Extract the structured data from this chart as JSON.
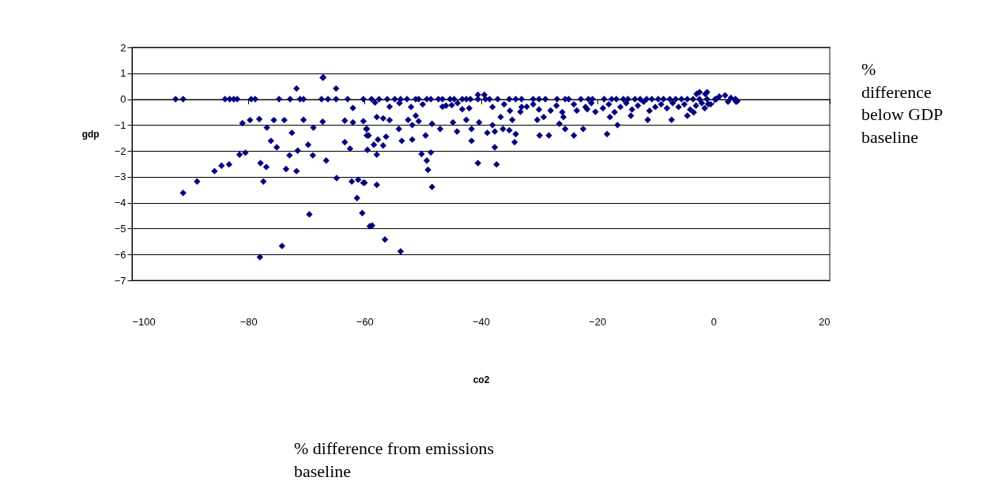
{
  "chart_data": {
    "type": "scatter",
    "xlabel": "co2",
    "ylabel": "gdp",
    "annotations": [
      "% difference below GDP baseline",
      "% difference from emissions baseline"
    ],
    "xlim": [
      -100,
      20
    ],
    "xticks": [
      -100,
      -80,
      -60,
      -40,
      -20,
      0,
      20
    ],
    "ylim": [
      -7,
      2
    ],
    "yticks": [
      -7,
      -6,
      -5,
      -4,
      -3,
      -2,
      -1,
      0,
      1,
      2
    ],
    "grid": "y",
    "marker": "diamond",
    "series": [
      {
        "color": "#000080",
        "x": [
          -92.5,
          -91.2,
          -84,
          -83.2,
          -82.5,
          -81.9,
          -79.5,
          -78.8,
          -74.7,
          -72.8,
          -71.1,
          -70.5,
          -67.4,
          -66.3,
          -64.9,
          -62.9,
          -60.2,
          -58.8,
          -57.5,
          -56.1,
          -54.8,
          -53.8,
          -52.7,
          -51.2,
          -50.7,
          -49.3,
          -48.6,
          -47.3,
          -46.6,
          -45.3,
          -44.6,
          -43.2,
          -42.5,
          -41.8,
          -40.5,
          -39.2,
          -38.5,
          -37.1,
          -35.1,
          -34.0,
          -33.0,
          -31.0,
          -30.0,
          -28.9,
          -26.9,
          -25.5,
          -24.9,
          -22.8,
          -21.5,
          -20.8,
          -18.8,
          -17.5,
          -16.7,
          -15.5,
          -14.7,
          -13.5,
          -12.6,
          -11.5,
          -10.6,
          -9.5,
          -8.6,
          -7.5,
          -6.5,
          -5.5,
          -4.5,
          -3.5,
          -2.4,
          -1.1,
          0.3,
          0.5,
          -38,
          -36,
          -35,
          -33,
          -31,
          -30,
          -27,
          -26,
          -24,
          -22,
          -21,
          -19,
          -18,
          -17,
          -16,
          -15,
          -14,
          -13,
          -12,
          -11,
          -10,
          -9,
          -8,
          -7,
          -6,
          -5,
          -4,
          -3,
          -2,
          -1.5,
          -0.5,
          1,
          2,
          2.5,
          3,
          -54,
          -52,
          -50,
          -46,
          -44,
          -42,
          -67.1,
          -71.7,
          -64.9,
          -2.9,
          -1.4,
          3.8,
          3.9,
          -91.2,
          -88.8,
          -85.8,
          -84.6,
          -83.3,
          -81.5,
          -80.5,
          -81.0,
          -79.7,
          -78.1,
          -76.8,
          -75.6,
          -73.8,
          -77.9,
          -76.9,
          -77.4,
          -76.1,
          -75.1,
          -72.5,
          -72.9,
          -73.5,
          -71.7,
          -71.5,
          -70.5,
          -69.7,
          -68.9,
          -68.8,
          -69.5,
          -67.2,
          -67.2,
          -66.6,
          -64.8,
          -63.4,
          -63.4,
          -62.5,
          -62.2,
          -62.0,
          -62.0,
          -61.1,
          -60.2,
          -61.3,
          -60.4,
          -59.1,
          -59.5,
          -59.6,
          -59.6,
          -60.2,
          -74.2,
          -78.0,
          -58.2,
          -55.7,
          -57.9,
          -56.8,
          -55.7,
          -59.7,
          -59.3,
          -57.7,
          -56.3,
          -58.4,
          -56.8,
          -57.9,
          -60.0,
          -57.9,
          -58.7,
          -56.5,
          -53.8,
          -54.1,
          -53.6,
          -51.8,
          -52.5,
          -51.2,
          -51.8,
          -50.7,
          -49.5,
          -50.2,
          -48.6,
          -49.3,
          -49.1,
          -48.4,
          -48.4,
          -47.0,
          -46.6,
          -45.0,
          -44.8,
          -44.1,
          -43.2,
          -42.5,
          -41.6,
          -41.6,
          -40.5,
          -40.5,
          -39.4,
          -40.3,
          -38.9,
          -38.0,
          -37.6,
          -37.3,
          -37.6,
          -36.6,
          -36.2,
          -35.1,
          -34.2,
          -34.0,
          -34.6,
          -33.2,
          -32.1,
          -30.3,
          -29.9,
          -28.3,
          -29.2,
          -28.0,
          -26.5,
          -25.5,
          -25.8,
          -24.0,
          -22.4,
          -23.5,
          -21.7,
          -20.3,
          -18.3,
          -16.5,
          -17.8,
          -14.2,
          -11.3,
          -7.2,
          -4.5,
          -3.4,
          -2.4,
          -1.1,
          -0.9,
          3.7,
          4.1
        ],
        "values": [
          0,
          0,
          0,
          0,
          0,
          0,
          0,
          0,
          0,
          0,
          0,
          0,
          0,
          0,
          0,
          0,
          0,
          0,
          0,
          0,
          0,
          0,
          0,
          0,
          0,
          0,
          0,
          0,
          0,
          0,
          0,
          0,
          0,
          0,
          0,
          0,
          0,
          0,
          0,
          0,
          0,
          0,
          0,
          0,
          0,
          0,
          0,
          0,
          0,
          0,
          0,
          0,
          0,
          0,
          0,
          0,
          0,
          0,
          0,
          0,
          0,
          0,
          0,
          0,
          0,
          0,
          0,
          0,
          0,
          0,
          -0.3,
          -0.2,
          -0.45,
          -0.3,
          -0.2,
          -0.4,
          -0.25,
          -0.5,
          -0.2,
          -0.3,
          -0.15,
          -0.35,
          -0.2,
          -0.5,
          -0.3,
          -0.15,
          -0.4,
          -0.25,
          -0.1,
          -0.45,
          -0.3,
          -0.2,
          -0.35,
          -0.15,
          -0.3,
          -0.2,
          -0.4,
          -0.25,
          -0.15,
          -0.35,
          -0.2,
          0.1,
          0.15,
          -0.1,
          0.05,
          -0.15,
          -0.3,
          -0.2,
          -0.25,
          -0.15,
          -0.35,
          0.84,
          0.41,
          0.41,
          0.2,
          0.2,
          0,
          -0.1,
          -3.62,
          -3.18,
          -2.78,
          -2.57,
          -2.52,
          -2.14,
          -2.07,
          -0.93,
          -0.81,
          -0.77,
          -1.1,
          -0.81,
          -0.81,
          -2.47,
          -2.62,
          -3.18,
          -1.61,
          -1.86,
          -1.3,
          -2.17,
          -2.7,
          -2.78,
          -1.99,
          -0.8,
          -1.76,
          -2.17,
          -1.1,
          -4.45,
          0.83,
          -0.87,
          -2.37,
          -3.05,
          -0.83,
          -1.66,
          -1.91,
          -3.18,
          -0.34,
          -0.9,
          -3.11,
          -3.23,
          -3.82,
          -4.4,
          -4.91,
          -1.96,
          -1.15,
          -1.4,
          -0.85,
          -5.67,
          -6.1,
          -0.13,
          -0.29,
          -0.69,
          -0.74,
          -0.81,
          -1.15,
          -1.4,
          -1.56,
          -1.45,
          -1.76,
          -1.79,
          -2.14,
          -3.23,
          -3.31,
          -4.88,
          -5.42,
          -5.88,
          -1.15,
          -1.61,
          -1.56,
          -0.8,
          -0.64,
          -1.0,
          -0.85,
          -1.4,
          -2.12,
          -2.06,
          -2.37,
          -2.73,
          -3.39,
          -0.95,
          -1.15,
          -0.29,
          -0.23,
          -0.9,
          -1.25,
          -0.39,
          -0.8,
          -1.15,
          -1.61,
          -2.47,
          0.17,
          0.17,
          -0.9,
          -1.3,
          -1.0,
          -1.86,
          -2.52,
          -1.25,
          -0.69,
          -1.15,
          -1.2,
          -1.66,
          -1.35,
          -0.8,
          -0.49,
          -0.29,
          -0.8,
          -1.4,
          -1.4,
          -0.69,
          -0.44,
          -0.95,
          -1.15,
          -0.69,
          -1.4,
          -1.15,
          -0.44,
          -0.39,
          -0.49,
          -1.35,
          -1.0,
          -0.69,
          -0.64,
          -0.8,
          -0.8,
          -0.64,
          -0.51,
          0.27,
          0.27,
          -0.19,
          -0.03,
          -0.08
        ]
      }
    ]
  }
}
